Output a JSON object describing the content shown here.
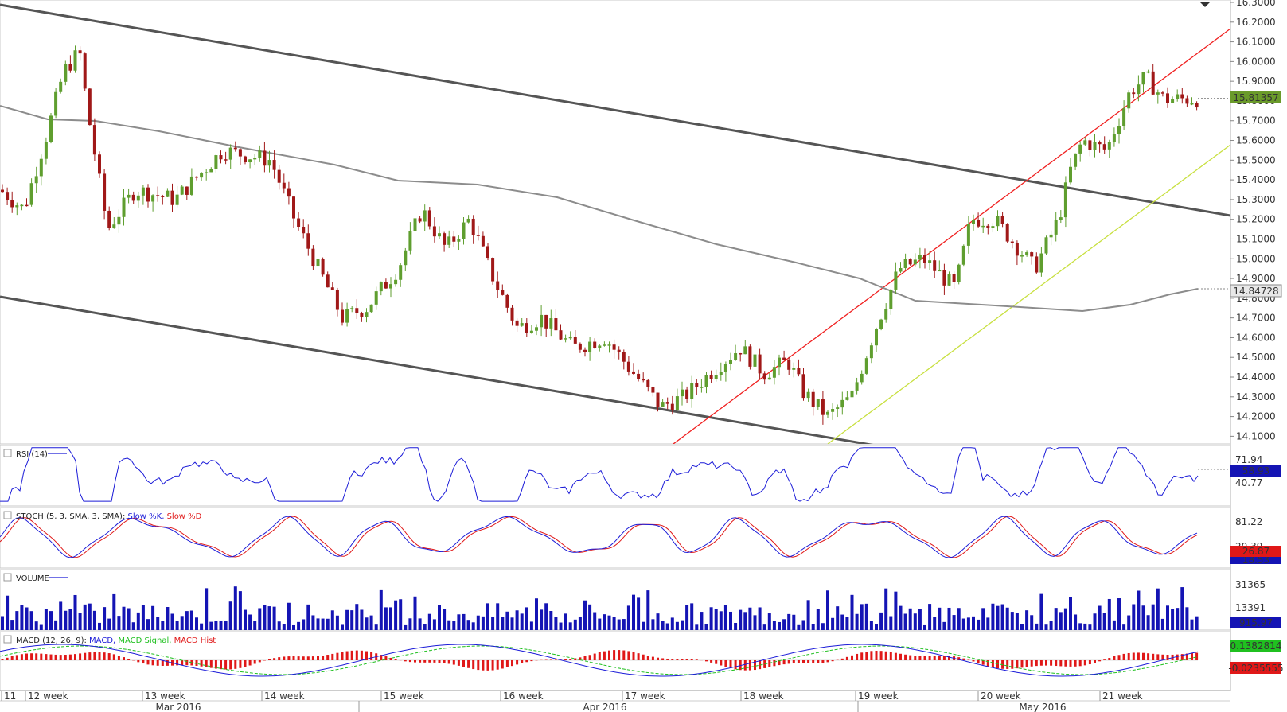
{
  "chart_data": {
    "type": "candlestick",
    "main": {
      "y_ticks": [
        "16.3000",
        "16.2000",
        "16.1000",
        "16.0000",
        "15.9000",
        "15.8000",
        "15.7000",
        "15.6000",
        "15.5000",
        "15.4000",
        "15.3000",
        "15.2000",
        "15.1000",
        "15.0000",
        "14.9000",
        "14.8000",
        "14.7000",
        "14.6000",
        "14.5000",
        "14.4000",
        "14.3000",
        "14.2000",
        "14.1000"
      ],
      "ylim": [
        14.08,
        16.31
      ],
      "last_price": "15.81357",
      "ma_value": "14.84728",
      "colors": {
        "up": "#5f9e2f",
        "down": "#a01818",
        "ma": "#8c8c8c",
        "channel": "#555555",
        "red_trend": "#f02020",
        "yellow_trend": "#c8e040"
      }
    },
    "rsi": {
      "title": "RSI (14)",
      "ticks": [
        "71.94",
        "40.77"
      ],
      "value": "58.93",
      "color": "#1c1cd8"
    },
    "stoch": {
      "title_prefix": "STOCH (5, 3, SMA, 3, SMA):",
      "k_label": "Slow %K,",
      "d_label": "Slow %D",
      "ticks": [
        "81.22",
        "20.39"
      ],
      "k_value": "18.53",
      "d_value": "26.87"
    },
    "volume": {
      "title": "VOLUME",
      "ticks": [
        "31365",
        "13391"
      ],
      "value": "915.97"
    },
    "macd": {
      "title_prefix": "MACD (12, 26, 9):",
      "macd_label": "MACD,",
      "signal_label": "MACD Signal,",
      "hist_label": "MACD Hist",
      "macd_value": "0.1382814",
      "hist_value": "-0.0235555"
    },
    "x_axis": {
      "weeks": [
        "11",
        "12 week",
        "13 week",
        "14 week",
        "15 week",
        "16 week",
        "17 week",
        "18 week",
        "19 week",
        "20 week",
        "21 week"
      ],
      "months": [
        "Mar 2016",
        "Apr 2016",
        "May 2016"
      ]
    }
  }
}
